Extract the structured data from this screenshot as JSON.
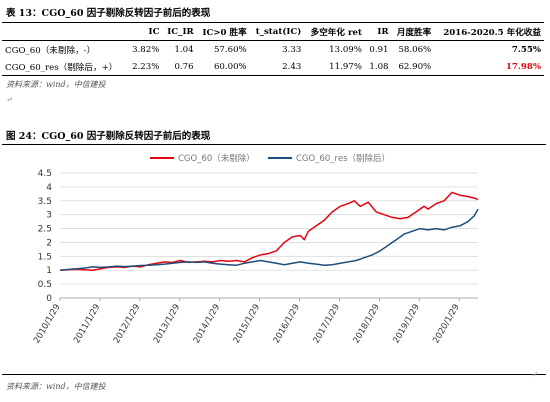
{
  "table": {
    "caption": "表 13：CGO_60 因子剔除反转因子前后的表现",
    "headers": [
      "",
      "IC",
      "IC_IR",
      "IC>0 胜率",
      "t_stat(IC)",
      "多空年化 ret",
      "IR",
      "月度胜率",
      "2016-2020.5 年化收益"
    ],
    "rows": [
      [
        "CGO_60（未剔除，-）",
        "3.82%",
        "1.04",
        "57.60%",
        "3.33",
        "13.09%",
        "0.91",
        "58.06%",
        "7.55%"
      ],
      [
        "CGO_60_res（剔除后，+）",
        "2.23%",
        "0.76",
        "60.00%",
        "2.43",
        "11.97%",
        "1.08",
        "62.90%",
        "17.98%"
      ]
    ],
    "source": "资料来源：wind，中信建投"
  },
  "figure": {
    "caption": "图 24：CGO_60 因子剔除反转因子前后的表现",
    "source": "资料来源：wind，中信建投"
  },
  "chart_data": {
    "type": "line",
    "title": "",
    "xlabel": "",
    "ylabel": "",
    "ylim": [
      0,
      4.5
    ],
    "yticks": [
      "0",
      "0.5",
      "1",
      "1.5",
      "2",
      "2.5",
      "3",
      "3.5",
      "4",
      "4.5"
    ],
    "xticks": [
      "2010/1/29",
      "2011/1/29",
      "2012/1/29",
      "2013/1/29",
      "2014/1/29",
      "2015/1/29",
      "2016/1/29",
      "2017/1/29",
      "2018/1/29",
      "2019/1/29",
      "2020/1/29"
    ],
    "xlim": [
      2010.08,
      2020.55
    ],
    "grid": true,
    "legend_position": "top-center",
    "series": [
      {
        "name": "CGO_60（未剔除）",
        "color": "#e30613",
        "x": [
          2010.08,
          2010.3,
          2010.5,
          2010.7,
          2010.9,
          2011.1,
          2011.3,
          2011.5,
          2011.7,
          2011.9,
          2012.1,
          2012.3,
          2012.5,
          2012.7,
          2012.9,
          2013.1,
          2013.3,
          2013.5,
          2013.7,
          2013.9,
          2014.1,
          2014.3,
          2014.5,
          2014.7,
          2014.9,
          2015.1,
          2015.3,
          2015.5,
          2015.7,
          2015.9,
          2016.1,
          2016.2,
          2016.3,
          2016.5,
          2016.7,
          2016.9,
          2017.1,
          2017.3,
          2017.45,
          2017.6,
          2017.8,
          2018.0,
          2018.2,
          2018.4,
          2018.6,
          2018.8,
          2019.0,
          2019.2,
          2019.3,
          2019.5,
          2019.7,
          2019.9,
          2020.1,
          2020.3,
          2020.45,
          2020.55
        ],
        "values": [
          1.0,
          1.02,
          1.03,
          1.02,
          1.0,
          1.05,
          1.1,
          1.12,
          1.1,
          1.15,
          1.12,
          1.2,
          1.25,
          1.3,
          1.28,
          1.35,
          1.28,
          1.3,
          1.32,
          1.3,
          1.35,
          1.32,
          1.35,
          1.3,
          1.45,
          1.55,
          1.6,
          1.7,
          2.0,
          2.2,
          2.25,
          2.1,
          2.4,
          2.6,
          2.8,
          3.1,
          3.3,
          3.4,
          3.5,
          3.3,
          3.45,
          3.1,
          3.0,
          2.9,
          2.85,
          2.9,
          3.1,
          3.3,
          3.2,
          3.4,
          3.5,
          3.8,
          3.7,
          3.65,
          3.6,
          3.55
        ]
      },
      {
        "name": "CGO_60_res（剔除后）",
        "color": "#1f4e79",
        "x": [
          2010.08,
          2010.3,
          2010.5,
          2010.7,
          2010.9,
          2011.1,
          2011.3,
          2011.5,
          2011.7,
          2011.9,
          2012.1,
          2012.3,
          2012.5,
          2012.7,
          2012.9,
          2013.1,
          2013.3,
          2013.5,
          2013.7,
          2013.9,
          2014.1,
          2014.3,
          2014.5,
          2014.7,
          2014.9,
          2015.1,
          2015.3,
          2015.5,
          2015.7,
          2015.9,
          2016.1,
          2016.3,
          2016.5,
          2016.7,
          2016.9,
          2017.1,
          2017.3,
          2017.5,
          2017.7,
          2017.9,
          2018.1,
          2018.3,
          2018.5,
          2018.7,
          2018.9,
          2019.1,
          2019.3,
          2019.5,
          2019.7,
          2019.9,
          2020.1,
          2020.3,
          2020.45,
          2020.55
        ],
        "values": [
          1.0,
          1.03,
          1.05,
          1.08,
          1.12,
          1.1,
          1.12,
          1.15,
          1.13,
          1.15,
          1.17,
          1.18,
          1.2,
          1.22,
          1.25,
          1.28,
          1.3,
          1.28,
          1.3,
          1.25,
          1.22,
          1.2,
          1.18,
          1.25,
          1.3,
          1.35,
          1.3,
          1.25,
          1.2,
          1.25,
          1.3,
          1.25,
          1.22,
          1.18,
          1.2,
          1.25,
          1.3,
          1.35,
          1.45,
          1.55,
          1.7,
          1.9,
          2.1,
          2.3,
          2.4,
          2.5,
          2.45,
          2.5,
          2.45,
          2.55,
          2.6,
          2.75,
          2.95,
          3.2
        ]
      }
    ]
  }
}
